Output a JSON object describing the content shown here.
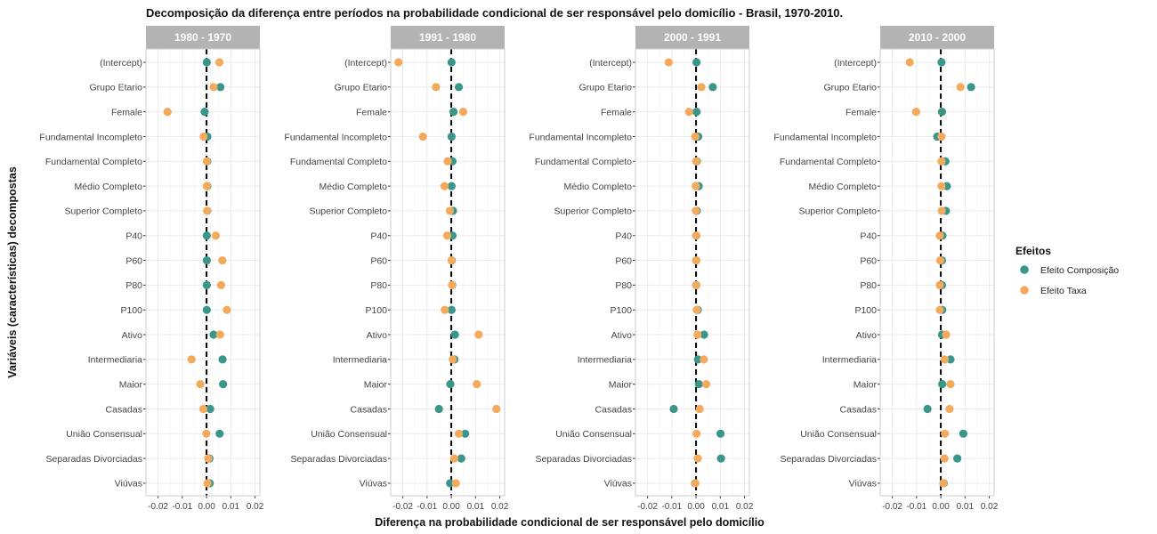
{
  "colors": {
    "composicao": "#3a968a",
    "taxa": "#f4aa5c",
    "strip": "#b3b3b3",
    "grid": "#ebebeb",
    "panel_border": "#cccccc",
    "zero_line": "#000000"
  },
  "chart_data": {
    "type": "scatter",
    "title": "Decomposição da diferença entre períodos na probabilidade condicional de ser responsável pelo domicílio - Brasil, 1970-2010.",
    "xlabel": "Diferença na probabilidade condicional de ser responsável pelo domicílio",
    "ylabel": "Variáveis (características) decompostas",
    "xlim": [
      -0.025,
      0.022
    ],
    "xticks": [
      -0.02,
      -0.01,
      0.0,
      0.01,
      0.02
    ],
    "xtick_labels": [
      "-0.02",
      "-0.01",
      "0.00",
      "0.01",
      "0.02"
    ],
    "grid": true,
    "reference_line": 0,
    "legend": {
      "title": "Efeitos",
      "placement": "right",
      "entries": [
        "Efeito Composição",
        "Efeito Taxa"
      ]
    },
    "categories": [
      "(Intercept)",
      "Grupo Etario",
      "Female",
      "Fundamental Incompleto",
      "Fundamental Completo",
      "Médio Completo",
      "Superior Completo",
      "P40",
      "P60",
      "P80",
      "P100",
      "Ativo",
      "Intermediaria",
      "Maior",
      "Casadas",
      "União Consensual",
      "Separadas Divorciadas",
      "Viúvas"
    ],
    "panels": [
      {
        "label": "1980 - 1970",
        "series": [
          {
            "name": "Efeito Composição",
            "values": [
              0.0001,
              0.0057,
              -0.0008,
              0.0003,
              0.0003,
              0.0003,
              0.0003,
              0.0001,
              0.0001,
              0.0001,
              0.0001,
              0.0029,
              0.0066,
              0.0068,
              0.0015,
              0.0054,
              0.0012,
              0.0013
            ]
          },
          {
            "name": "Efeito Taxa",
            "values": [
              0.0053,
              0.0029,
              -0.0161,
              -0.0012,
              0.0001,
              0.0001,
              0.0002,
              0.0038,
              0.0065,
              0.006,
              0.0084,
              0.0056,
              -0.0062,
              -0.0026,
              -0.0013,
              -0.0001,
              0.0007,
              0.0004
            ]
          }
        ]
      },
      {
        "label": "1991 - 1980",
        "series": [
          {
            "name": "Efeito Composição",
            "values": [
              0.0001,
              0.0031,
              0.0009,
              0.0001,
              0.0005,
              0.0001,
              0.0007,
              0.0005,
              0.0002,
              0.0004,
              0.0001,
              0.0015,
              0.0013,
              -0.0004,
              -0.0051,
              0.0057,
              0.0041,
              -0.0005
            ]
          },
          {
            "name": "Efeito Taxa",
            "values": [
              -0.0218,
              -0.0063,
              0.0049,
              -0.0117,
              -0.0015,
              -0.0028,
              -0.0006,
              -0.0017,
              0.0001,
              0.0003,
              -0.0027,
              0.0113,
              0.0006,
              0.0105,
              0.0186,
              0.0031,
              0.0012,
              0.0019
            ]
          }
        ]
      },
      {
        "label": "2000 - 1991",
        "series": [
          {
            "name": "Efeito Composição",
            "values": [
              0.0002,
              0.0069,
              0.0002,
              0.0009,
              0.0003,
              0.0011,
              0.0003,
              0.0001,
              0.0001,
              0.0001,
              0.0007,
              0.0033,
              0.0008,
              0.0012,
              -0.0092,
              0.0101,
              0.0103,
              -0.0004
            ]
          },
          {
            "name": "Efeito Taxa",
            "values": [
              -0.0113,
              0.0022,
              -0.0029,
              -0.0003,
              0.0001,
              -0.0001,
              -0.0001,
              0.0001,
              0.0001,
              0.0001,
              0.0003,
              0.0006,
              0.0032,
              0.0042,
              0.0015,
              0.0002,
              0.0007,
              -0.0003
            ]
          }
        ]
      },
      {
        "label": "2010 - 2000",
        "series": [
          {
            "name": "Efeito Composição",
            "values": [
              0.0003,
              0.0125,
              0.0005,
              -0.0015,
              0.0019,
              0.0025,
              0.0021,
              0.0007,
              0.0005,
              0.0005,
              0.0006,
              0.0005,
              0.004,
              0.0006,
              -0.0055,
              0.0093,
              0.0068,
              0.0012
            ]
          },
          {
            "name": "Efeito Taxa",
            "values": [
              -0.0128,
              0.0081,
              -0.0102,
              0.0003,
              0.0003,
              0.0003,
              0.0004,
              -0.0004,
              -0.0002,
              -0.0004,
              -0.0004,
              0.0022,
              0.0016,
              0.004,
              0.0036,
              0.0017,
              0.0015,
              0.001
            ]
          }
        ]
      }
    ]
  }
}
